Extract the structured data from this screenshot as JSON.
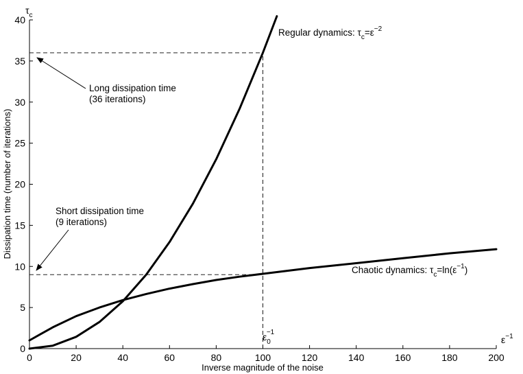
{
  "chart_data": {
    "type": "line",
    "xlabel": "Inverse magnitude of the noise",
    "ylabel": "Dissipation time (number of iterations)",
    "x_axis_symbol": "ε",
    "x_axis_symbol_sup": "−1",
    "y_axis_symbol": "τ",
    "y_axis_symbol_sub": "c",
    "xlim": [
      0,
      200
    ],
    "ylim": [
      0,
      40
    ],
    "xticks": [
      "0",
      "20",
      "40",
      "60",
      "80",
      "100",
      "120",
      "140",
      "160",
      "180",
      "200"
    ],
    "yticks": [
      "0",
      "5",
      "10",
      "15",
      "20",
      "25",
      "30",
      "35",
      "40"
    ],
    "grid": false,
    "series": [
      {
        "name": "Regular dynamics",
        "label_main": "Regular dynamics: τ",
        "label_sub": "c",
        "label_mid": "=ε",
        "label_sup": "−2",
        "x": [
          0,
          10,
          20,
          30,
          40,
          50,
          60,
          70,
          80,
          90,
          100,
          106
        ],
        "values": [
          0,
          0.36,
          1.44,
          3.24,
          5.76,
          9,
          12.96,
          17.64,
          23.04,
          29.16,
          36,
          40.45
        ],
        "color": "#000000"
      },
      {
        "name": "Chaotic dynamics",
        "label_main": "Chaotic dynamics: τ",
        "label_sub": "c",
        "label_mid": "=ln(ε",
        "label_sup": "−1",
        "label_end": ")",
        "x": [
          0,
          5,
          10,
          20,
          30,
          40,
          50,
          60,
          70,
          80,
          90,
          100,
          120,
          140,
          160,
          180,
          200
        ],
        "values": [
          1,
          1.8,
          2.6,
          3.95,
          5.0,
          5.9,
          6.65,
          7.3,
          7.85,
          8.35,
          8.75,
          9.1,
          9.8,
          10.4,
          11.0,
          11.6,
          12.1
        ],
        "color": "#000000"
      }
    ],
    "reference_lines": {
      "vertical_x": 100,
      "vertical_label": "ε",
      "vertical_label_sub": "0",
      "vertical_label_sup": "−1",
      "horizontal_y": [
        36,
        9
      ]
    },
    "annotations": [
      {
        "line1": "Long dissipation time",
        "line2": "(36 iterations)",
        "target_y": 36
      },
      {
        "line1": "Short dissipation time",
        "line2": "(9 iterations)",
        "target_y": 9
      }
    ]
  }
}
